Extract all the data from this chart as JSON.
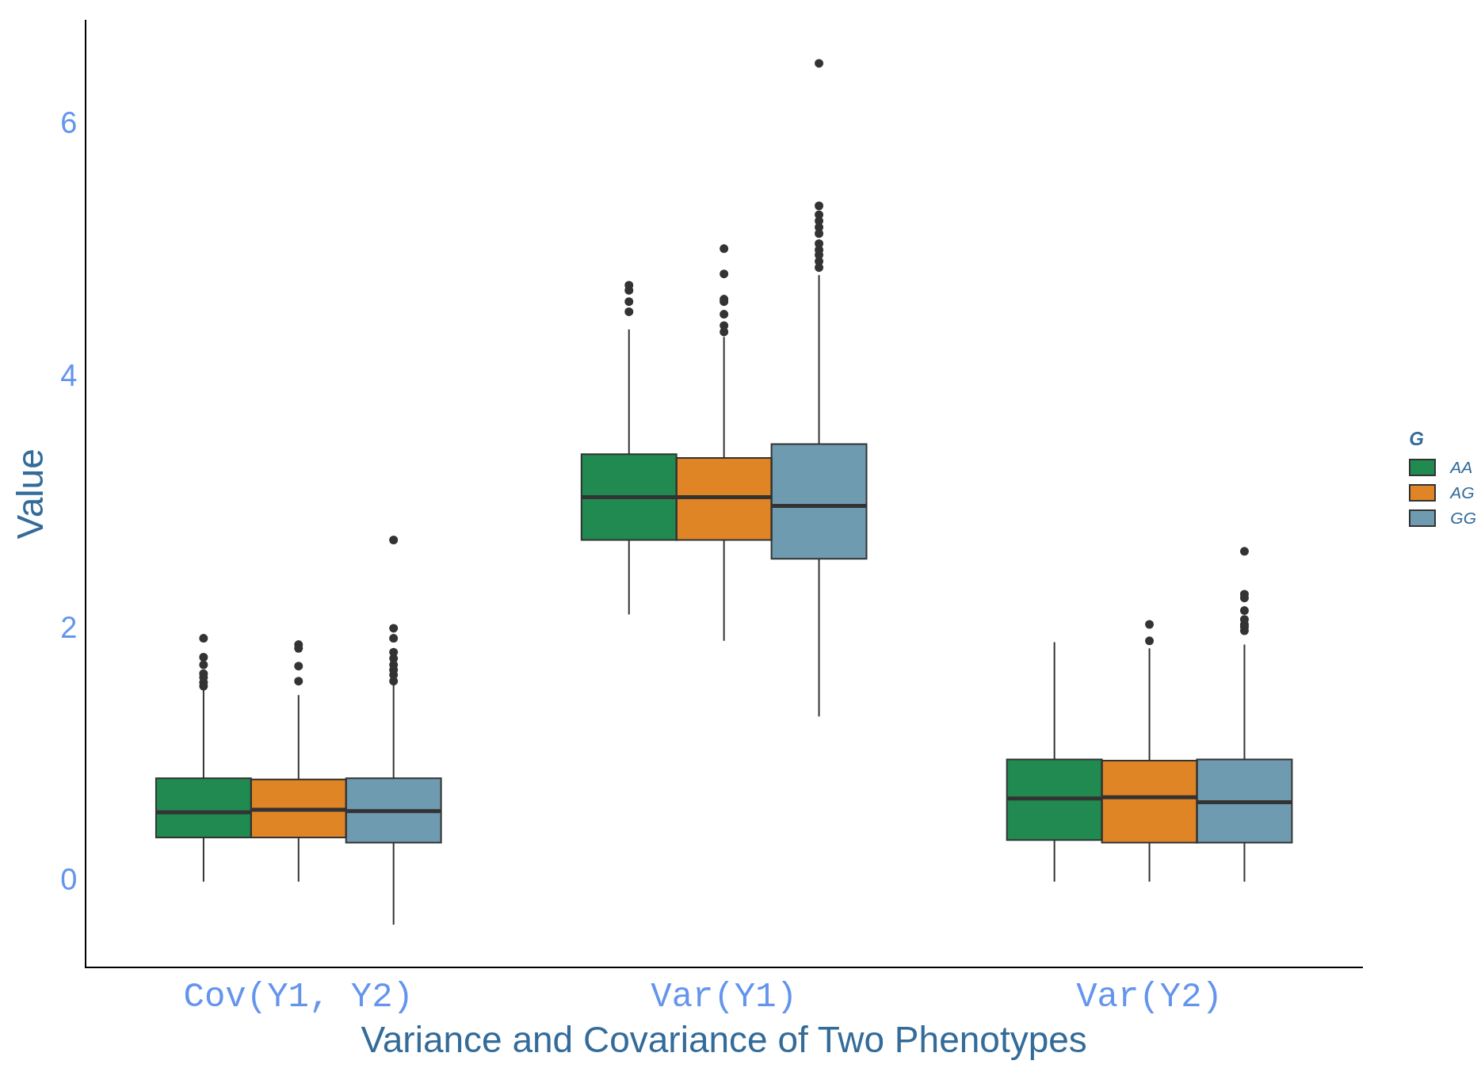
{
  "chart_data": {
    "type": "box",
    "xlabel": "Variance and Covariance of Two Phenotypes",
    "ylabel": "Value",
    "legend_title": "G",
    "legend": "right",
    "categories": [
      "Cov(Y1, Y2)",
      "Var(Y1)",
      "Var(Y2)"
    ],
    "ylim": [
      -0.68,
      6.83
    ],
    "yticks": [
      0,
      2,
      4,
      6
    ],
    "series": [
      {
        "name": "AA",
        "color": "#208a50",
        "boxes": [
          {
            "low": 0,
            "q1": 0.35,
            "median": 0.55,
            "q3": 0.82,
            "high": 1.52,
            "outliers": [
              1.55,
              1.58,
              1.62,
              1.65,
              1.72,
              1.78,
              1.93
            ]
          },
          {
            "low": 2.12,
            "q1": 2.71,
            "median": 3.05,
            "q3": 3.39,
            "high": 4.38,
            "outliers": [
              4.52,
              4.6,
              4.69,
              4.73
            ]
          },
          {
            "low": 0,
            "q1": 0.33,
            "median": 0.66,
            "q3": 0.97,
            "high": 1.9
          }
        ]
      },
      {
        "name": "AG",
        "color": "#e08526",
        "boxes": [
          {
            "low": 0,
            "q1": 0.35,
            "median": 0.57,
            "q3": 0.81,
            "high": 1.48,
            "outliers": [
              1.59,
              1.71,
              1.85,
              1.88
            ]
          },
          {
            "low": 1.91,
            "q1": 2.71,
            "median": 3.05,
            "q3": 3.36,
            "high": 4.32,
            "outliers": [
              4.36,
              4.41,
              4.5,
              4.6,
              4.62,
              4.82,
              5.02
            ]
          },
          {
            "low": 0,
            "q1": 0.31,
            "median": 0.67,
            "q3": 0.96,
            "high": 1.85,
            "outliers": [
              1.91,
              2.04
            ]
          }
        ]
      },
      {
        "name": "GG",
        "color": "#6f9bb0",
        "boxes": [
          {
            "low": -0.34,
            "q1": 0.31,
            "median": 0.56,
            "q3": 0.82,
            "high": 1.58,
            "outliers": [
              1.59,
              1.64,
              1.68,
              1.72,
              1.77,
              1.82,
              1.93,
              2.01,
              2.71
            ]
          },
          {
            "low": 1.31,
            "q1": 2.56,
            "median": 2.98,
            "q3": 3.47,
            "high": 4.81,
            "outliers": [
              4.87,
              4.92,
              4.97,
              5.01,
              5.06,
              5.14,
              5.19,
              5.24,
              5.29,
              5.36,
              6.49
            ]
          },
          {
            "low": 0,
            "q1": 0.31,
            "median": 0.63,
            "q3": 0.97,
            "high": 1.88,
            "outliers": [
              1.99,
              2.02,
              2.04,
              2.08,
              2.15,
              2.25,
              2.28,
              2.62
            ]
          }
        ]
      }
    ]
  }
}
